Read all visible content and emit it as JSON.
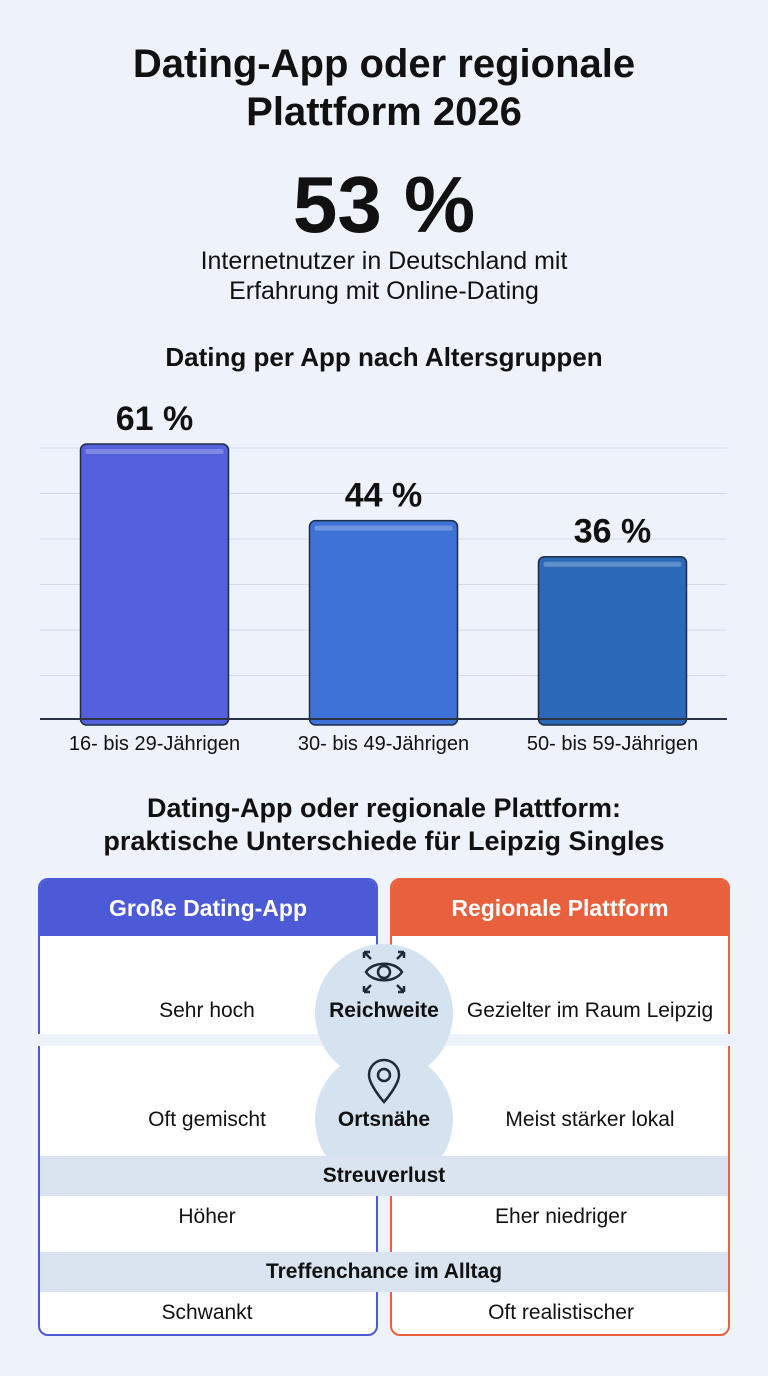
{
  "title_line1": "Dating-App oder regionale",
  "title_line2": "Plattform 2026",
  "stat": {
    "value": "53 %",
    "desc_line1": "Internetnutzer in Deutschland mit",
    "desc_line2": "Erfahrung mit Online-Dating"
  },
  "chart_data": {
    "type": "bar",
    "title": "Dating per App nach Altersgruppen",
    "categories": [
      "16- bis 29-Jährigen",
      "30- bis 49-Jährigen",
      "50- bis 59-Jährigen"
    ],
    "values": [
      61,
      44,
      36
    ],
    "value_labels": [
      "61 %",
      "44 %",
      "36 %"
    ],
    "colors": [
      "#5560dc",
      "#3f72d6",
      "#2b68b8"
    ],
    "ylim": [
      0,
      61
    ],
    "grid": true
  },
  "comparison": {
    "title_line1": "Dating-App oder regionale Plattform:",
    "title_line2": "praktische Unterschiede für Leipzig Singles",
    "left_header": "Große Dating-App",
    "right_header": "Regionale Plattform",
    "left_color": "#4c5ad8",
    "right_color": "#e8603c",
    "rows": [
      {
        "criterion": "Reichweite",
        "icon": "eye-icon",
        "left": "Sehr hoch",
        "right": "Gezielter im Raum Leipzig"
      },
      {
        "criterion": "Ortsnähe",
        "icon": "location-pin-icon",
        "left": "Oft gemischt",
        "right": "Meist stärker lokal"
      },
      {
        "criterion": "Streuverlust",
        "left": "Höher",
        "right": "Eher niedriger"
      },
      {
        "criterion": "Treffenchance im Alltag",
        "left": "Schwankt",
        "right": "Oft realistischer"
      }
    ]
  }
}
